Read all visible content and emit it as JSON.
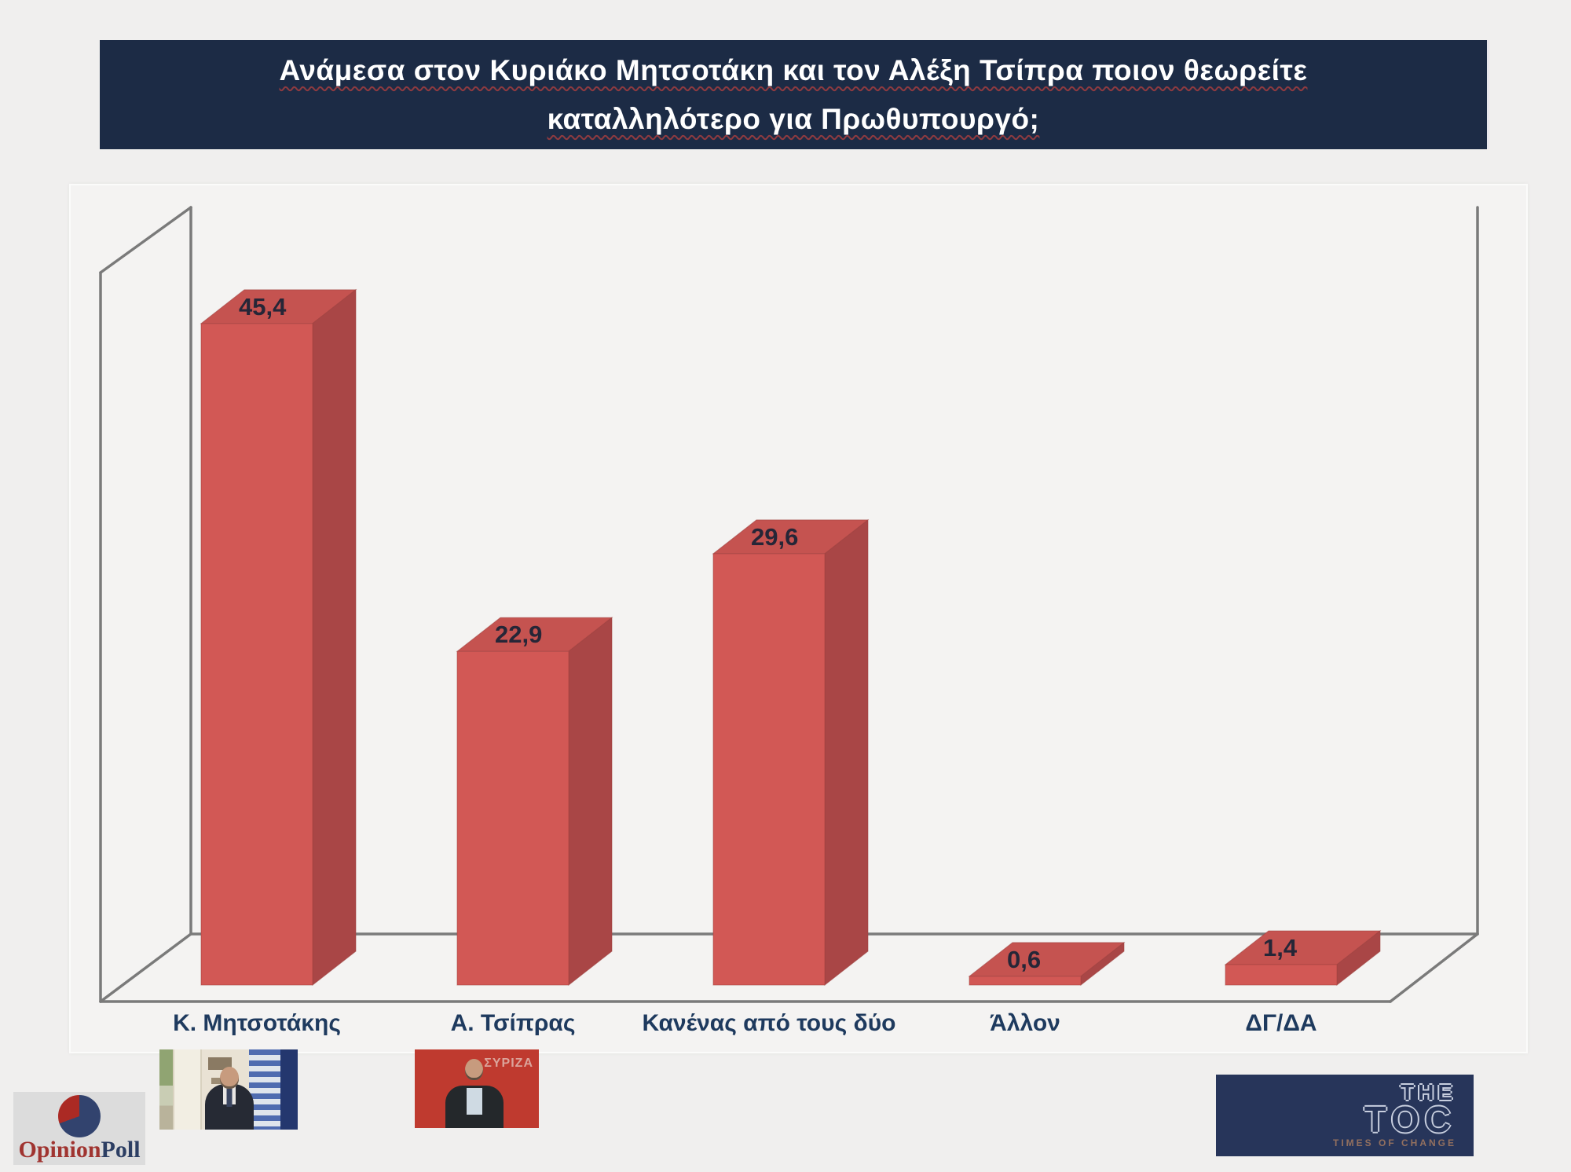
{
  "title": {
    "line1": "Ανάμεσα στον Κυριάκο Μητσοτάκη και τον Αλέξη Τσίπρα ποιον θεωρείτε",
    "line2": "καταλληλότερο για Πρωθυπουργό;",
    "bg_color": "#1c2b45",
    "text_color": "#ffffff",
    "underline_color": "#8e3a40"
  },
  "chart_data": {
    "type": "bar",
    "projection": "3d-column",
    "categories": [
      "Κ. Μητσοτάκης",
      "Α. Τσίπρας",
      "Κανένας από τους δύο",
      "Άλλον",
      "ΔΓ/ΔΑ"
    ],
    "values": [
      45.4,
      22.9,
      29.6,
      0.6,
      1.4
    ],
    "value_labels": [
      "45,4",
      "22,9",
      "29,6",
      "0,6",
      "1,4"
    ],
    "ylim": [
      0,
      50
    ],
    "grid": false,
    "legend": false,
    "colors": {
      "bar_front": "#d25855",
      "bar_top": "#c55350",
      "bar_side": "#a94646",
      "bar_outline": "#9c403e",
      "axis": "#7a7a7a",
      "value_label": "#262637",
      "category_label": "#1e3a5e"
    }
  },
  "photos": {
    "tsipras_backdrop_text": "ΣΥΡΙΖΑ"
  },
  "branding": {
    "opinionpoll": {
      "part1": "Opinion",
      "part2": "Poll",
      "part1_color": "#a03430",
      "part2_color": "#2c3e63",
      "pie_blue": "#32436e",
      "pie_red": "#ab2a24",
      "bg": "#dcdcdc"
    },
    "thetoc": {
      "word1": "THE",
      "word2": "TOC",
      "tagline": "TIMES OF CHANGE",
      "bg": "#27355a",
      "outline_color": "#c8cfdf"
    }
  }
}
